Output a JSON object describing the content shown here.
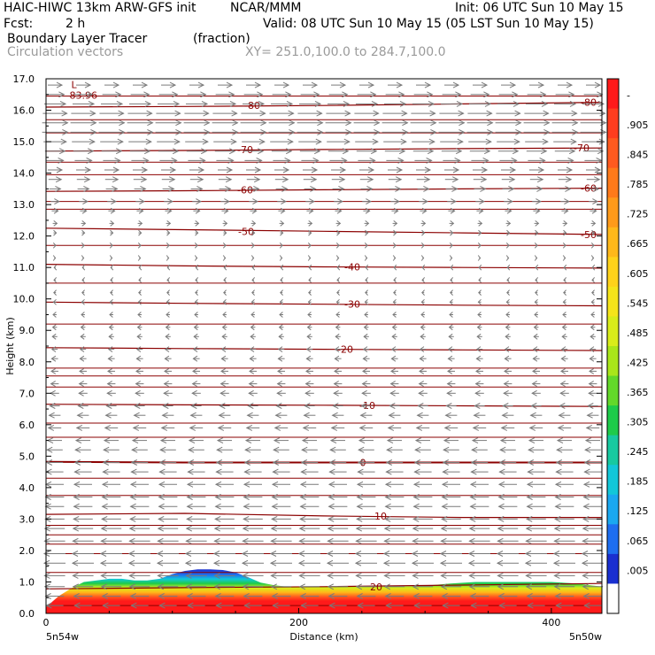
{
  "header": {
    "model": "HAIC-HIWC 13km ARW-GFS init",
    "org": "NCAR/MMM",
    "init": "Init: 06 UTC Sun 10 May 15",
    "fcst_label": "Fcst:",
    "fcst_value": "2 h",
    "valid": "Valid: 08 UTC Sun 10 May 15 (05 LST Sun 10 May 15)",
    "field": "Boundary Layer Tracer",
    "units": "(fraction)",
    "vectors": "Circulation vectors",
    "xy": "XY= 251.0,100.0 to 284.7,100.0"
  },
  "chart_data": {
    "type": "heatmap",
    "xlabel": "Distance (km)",
    "ylabel": "Height (km)",
    "xlim": [
      0,
      440
    ],
    "ylim": [
      0,
      17
    ],
    "x_ticks": [
      0,
      200,
      400
    ],
    "x_tick_labels": [
      "0",
      "200",
      "400"
    ],
    "x_end_labels": [
      "5n54w",
      "5n50w"
    ],
    "y_ticks": [
      0,
      1,
      2,
      3,
      4,
      5,
      6,
      7,
      8,
      9,
      10,
      11,
      12,
      13,
      14,
      15,
      16,
      17
    ],
    "y_tick_labels": [
      "0.0",
      "1.0",
      "2.0",
      "3.0",
      "4.0",
      "5.0",
      "6.0",
      "7.0",
      "8.0",
      "9.0",
      "10.0",
      "11.0",
      "12.0",
      "13.0",
      "14.0",
      "15.0",
      "16.0",
      "17.0"
    ],
    "colorbar": {
      "labels": [
        "-",
        ".905",
        ".845",
        ".785",
        ".725",
        ".665",
        ".605",
        ".545",
        ".485",
        ".425",
        ".365",
        ".305",
        ".245",
        ".185",
        ".125",
        ".065",
        ".005"
      ],
      "colors": [
        "#ff1a1a",
        "#ff3d1f",
        "#ff5a1f",
        "#ff7a1a",
        "#ff9a1a",
        "#ffb81a",
        "#ffd21a",
        "#f5e41a",
        "#d8ec1a",
        "#a9e61a",
        "#63d82a",
        "#1ecb4a",
        "#17c9a0",
        "#12c7d8",
        "#1aa8f0",
        "#1e6ef0",
        "#1a2fd0",
        "#ffffff"
      ]
    },
    "tracer_profile": {
      "x": [
        0,
        10,
        20,
        30,
        40,
        50,
        60,
        70,
        80,
        90,
        100,
        110,
        120,
        130,
        140,
        150,
        160,
        170,
        180,
        190,
        200,
        220,
        240,
        260,
        280,
        300,
        320,
        340,
        360,
        380,
        400,
        420,
        440
      ],
      "top": [
        0.2,
        0.55,
        0.8,
        1.0,
        1.05,
        1.1,
        1.1,
        1.05,
        1.05,
        1.1,
        1.25,
        1.35,
        1.4,
        1.4,
        1.38,
        1.3,
        1.15,
        0.98,
        0.9,
        0.85,
        0.85,
        0.85,
        0.85,
        0.85,
        0.85,
        0.88,
        0.95,
        1.0,
        1.0,
        1.0,
        1.0,
        0.95,
        0.85
      ]
    },
    "isotherms": [
      {
        "value": -80,
        "label": "-80",
        "y": [
          16.1,
          16.12,
          16.15,
          16.2,
          16.25
        ]
      },
      {
        "value": -70,
        "label": "-70",
        "y": [
          14.7,
          14.72,
          14.75,
          14.78,
          14.8
        ]
      },
      {
        "value": -60,
        "label": "-60",
        "y": [
          13.42,
          13.44,
          13.47,
          13.5,
          13.52
        ]
      },
      {
        "value": -50,
        "label": "-50",
        "y": [
          12.25,
          12.2,
          12.15,
          12.1,
          12.05
        ]
      },
      {
        "value": -40,
        "label": "-40",
        "y": [
          11.1,
          11.05,
          11.02,
          11.0,
          10.98
        ]
      },
      {
        "value": -30,
        "label": "-30",
        "y": [
          9.9,
          9.86,
          9.83,
          9.8,
          9.78
        ]
      },
      {
        "value": -20,
        "label": "-20",
        "y": [
          8.45,
          8.42,
          8.4,
          8.38,
          8.36
        ]
      },
      {
        "value": -10,
        "label": "-10",
        "y": [
          6.65,
          6.63,
          6.62,
          6.6,
          6.58
        ]
      },
      {
        "value": 0,
        "label": "0",
        "y": [
          4.82,
          4.8,
          4.8,
          4.8,
          4.8
        ]
      },
      {
        "value": 10,
        "label": "10",
        "y": [
          3.15,
          3.18,
          3.1,
          3.05,
          3.05
        ]
      },
      {
        "value": 20,
        "label": "20",
        "y": [
          0.78,
          0.82,
          0.85,
          0.9,
          0.95
        ]
      }
    ],
    "minor_contours": [
      16.45,
      15.7,
      15.28,
      14.35,
      13.95,
      13.1,
      12.85,
      11.7,
      10.5,
      9.2,
      7.8,
      7.55,
      7.2,
      6.05,
      5.6,
      4.3,
      3.75,
      2.8,
      2.5,
      2.2,
      1.9,
      1.3,
      0.25
    ],
    "extremum": {
      "label": "L",
      "value": "-83.96",
      "x": 20,
      "y": 16.7
    },
    "vector_rows": [
      {
        "y": 16.8,
        "u": 1.0
      },
      {
        "y": 16.5,
        "u": 1.3
      },
      {
        "y": 16.2,
        "u": 1.5
      },
      {
        "y": 15.9,
        "u": 1.7
      },
      {
        "y": 15.6,
        "u": 1.8
      },
      {
        "y": 15.3,
        "u": 1.8
      },
      {
        "y": 15.0,
        "u": 1.6
      },
      {
        "y": 14.7,
        "u": 1.4
      },
      {
        "y": 14.4,
        "u": 1.2
      },
      {
        "y": 14.1,
        "u": 1.0
      },
      {
        "y": 13.8,
        "u": 0.9
      },
      {
        "y": 13.5,
        "u": 0.8
      },
      {
        "y": 13.1,
        "u": 0.6
      },
      {
        "y": 12.8,
        "u": 0.45
      },
      {
        "y": 12.4,
        "u": 0.3
      },
      {
        "y": 12.1,
        "u": 0.2
      },
      {
        "y": 11.7,
        "u": 0.12
      },
      {
        "y": 11.3,
        "u": 0.08
      },
      {
        "y": 11.0,
        "u": -0.1
      },
      {
        "y": 10.6,
        "u": -0.12
      },
      {
        "y": 10.2,
        "u": -0.15
      },
      {
        "y": 9.9,
        "u": -0.2
      },
      {
        "y": 9.5,
        "u": -0.25
      },
      {
        "y": 9.1,
        "u": -0.3
      },
      {
        "y": 8.8,
        "u": -0.35
      },
      {
        "y": 8.4,
        "u": -0.4
      },
      {
        "y": 8.1,
        "u": -0.45
      },
      {
        "y": 7.7,
        "u": -0.5
      },
      {
        "y": 7.3,
        "u": -0.55
      },
      {
        "y": 7.0,
        "u": -0.6
      },
      {
        "y": 6.6,
        "u": -0.7
      },
      {
        "y": 6.3,
        "u": -0.8
      },
      {
        "y": 5.9,
        "u": -0.9
      },
      {
        "y": 5.5,
        "u": -1.0
      },
      {
        "y": 5.2,
        "u": -1.1
      },
      {
        "y": 4.8,
        "u": -1.15
      },
      {
        "y": 4.5,
        "u": -1.2
      },
      {
        "y": 4.1,
        "u": -1.25
      },
      {
        "y": 3.7,
        "u": -1.3
      },
      {
        "y": 3.4,
        "u": -1.3
      },
      {
        "y": 3.0,
        "u": -1.35
      },
      {
        "y": 2.7,
        "u": -1.4
      },
      {
        "y": 2.3,
        "u": -1.45
      },
      {
        "y": 1.9,
        "u": -1.5
      },
      {
        "y": 1.6,
        "u": -1.5
      },
      {
        "y": 1.2,
        "u": -1.45
      },
      {
        "y": 0.85,
        "u": -1.4
      },
      {
        "y": 0.55,
        "u": -1.3
      },
      {
        "y": 0.25,
        "u": -1.2
      }
    ],
    "vector_columns": 20
  },
  "colors": {
    "contour": "#8b0000",
    "vector": "#7a7a7a",
    "axis": "#000000"
  }
}
